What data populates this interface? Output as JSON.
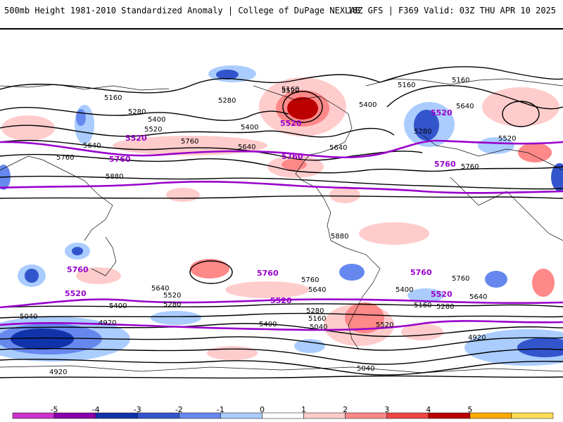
{
  "header": {
    "title": "500mb Height 1981-2010 Standardized Anomaly | College of DuPage NEXLAB",
    "run": "18Z GFS | F369 Valid: 03Z THU APR 10 2025"
  },
  "colorbar": {
    "ticks": [
      "-5",
      "-4",
      "-3",
      "-2",
      "-1",
      "0",
      "1",
      "2",
      "3",
      "4",
      "5"
    ],
    "colors": [
      "#cc33cc",
      "#8800aa",
      "#1133aa",
      "#3355cc",
      "#6688ee",
      "#aaccff",
      "#ffffff",
      "#ffcccc",
      "#ff8888",
      "#ee4444",
      "#bb0000",
      "#ffaa00",
      "#ffdd55"
    ]
  },
  "contour_labels": {
    "black": [
      "5160",
      "5160",
      "5160",
      "5160",
      "5280",
      "5280",
      "5400",
      "5400",
      "5520",
      "5520",
      "5640",
      "5640",
      "5760",
      "5760",
      "5880",
      "5280",
      "5400",
      "5640",
      "5160",
      "5640",
      "5760",
      "5640",
      "5520",
      "5400",
      "5160",
      "5640",
      "5520",
      "5400",
      "5280",
      "5040",
      "4920",
      "5760",
      "5640",
      "5520",
      "5400",
      "5280",
      "5160",
      "5040",
      "5760",
      "5640",
      "5400",
      "5160",
      "5280",
      "5520",
      "5040",
      "4920",
      "4920",
      "5880",
      "5280",
      "5400",
      "5040",
      "5520"
    ],
    "purple": [
      "5520",
      "5760",
      "5520",
      "5760",
      "5520",
      "5760",
      "5760",
      "5520",
      "5760",
      "5520",
      "5520",
      "5760",
      "5760",
      "5520"
    ]
  }
}
